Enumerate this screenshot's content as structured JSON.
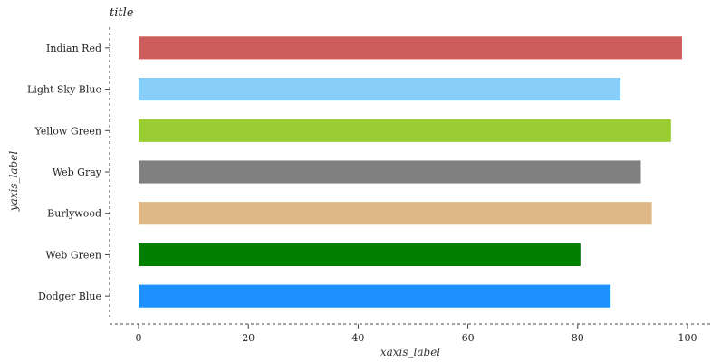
{
  "chart_data": {
    "type": "bar",
    "orientation": "horizontal",
    "title": "title",
    "xlabel": "xaxis_label",
    "ylabel": "yaxis_label",
    "xlim": [
      0,
      100
    ],
    "xticks": [
      0,
      20,
      40,
      60,
      80,
      100
    ],
    "grid": false,
    "legend": "none",
    "categories": [
      "Dodger Blue",
      "Web Green",
      "Burlywood",
      "Web Gray",
      "Yellow Green",
      "Light Sky Blue",
      "Indian Red"
    ],
    "values": [
      86,
      80.5,
      93.5,
      91.5,
      97,
      87.8,
      99
    ],
    "colors": [
      "#1E90FF",
      "#007F00",
      "#DEB887",
      "#808080",
      "#9ACD32",
      "#87CEFA",
      "#CD5C5C"
    ]
  }
}
